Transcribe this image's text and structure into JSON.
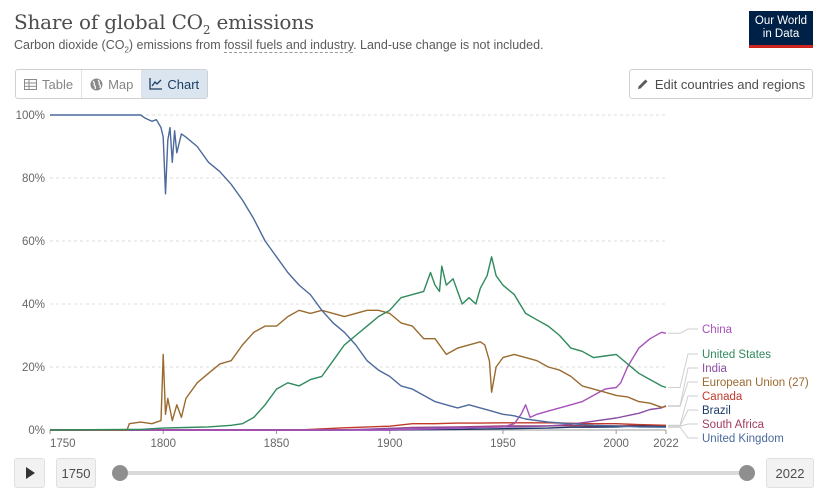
{
  "header": {
    "title": "Share of global CO",
    "title_sub": "2",
    "title_rest": " emissions",
    "subtitle_pre": "Carbon dioxide (CO",
    "subtitle_sub": "2",
    "subtitle_mid": ") emissions from ",
    "subtitle_link": "fossil fuels and industry",
    "subtitle_post": ". Land-use change is not included.",
    "logo_line1": "Our World",
    "logo_line2": "in Data"
  },
  "tabs": [
    {
      "label": "Table",
      "icon": "table-icon"
    },
    {
      "label": "Map",
      "icon": "globe-icon"
    },
    {
      "label": "Chart",
      "icon": "line-chart-icon",
      "active": true
    }
  ],
  "edit_button": {
    "label": "Edit countries and regions",
    "icon": "pencil-icon"
  },
  "timeline": {
    "start_year": "1750",
    "end_year": "2022",
    "play_icon": "play-icon"
  },
  "colors": {
    "United Kingdom": "#4c6a9c",
    "United States": "#2f8a5c",
    "European Union (27)": "#9a6a2f",
    "China": "#a652ba",
    "India": "#8a4da3",
    "Canada": "#c0392b",
    "Brazil": "#1a3a6b",
    "South Africa": "#a33c5c",
    "grid": "#dddddd",
    "text": "#5b5b5b"
  },
  "chart_data": {
    "type": "line",
    "title": "Share of global CO2 emissions",
    "xlim": [
      1750,
      2022
    ],
    "ylim": [
      0,
      100
    ],
    "x_ticks": [
      "1750",
      "1800",
      "1850",
      "1900",
      "1950",
      "2000",
      "2022"
    ],
    "y_ticks": [
      "0%",
      "20%",
      "40%",
      "60%",
      "80%",
      "100%"
    ],
    "series": [
      {
        "name": "United Kingdom",
        "points": [
          [
            1750,
            100
          ],
          [
            1790,
            100
          ],
          [
            1792,
            99
          ],
          [
            1795,
            98
          ],
          [
            1797,
            98.5
          ],
          [
            1799,
            96
          ],
          [
            1800,
            93
          ],
          [
            1801,
            75
          ],
          [
            1802,
            92
          ],
          [
            1803,
            96
          ],
          [
            1804,
            85
          ],
          [
            1805,
            95
          ],
          [
            1806,
            88
          ],
          [
            1808,
            94
          ],
          [
            1810,
            93
          ],
          [
            1815,
            90
          ],
          [
            1820,
            85
          ],
          [
            1825,
            82
          ],
          [
            1830,
            78
          ],
          [
            1835,
            73
          ],
          [
            1840,
            67
          ],
          [
            1845,
            60
          ],
          [
            1850,
            55
          ],
          [
            1855,
            50
          ],
          [
            1860,
            46
          ],
          [
            1865,
            43
          ],
          [
            1870,
            38
          ],
          [
            1875,
            34
          ],
          [
            1880,
            31
          ],
          [
            1885,
            27
          ],
          [
            1890,
            22
          ],
          [
            1895,
            19
          ],
          [
            1900,
            17
          ],
          [
            1905,
            14
          ],
          [
            1910,
            13
          ],
          [
            1915,
            11
          ],
          [
            1920,
            9
          ],
          [
            1925,
            8
          ],
          [
            1930,
            7
          ],
          [
            1935,
            8
          ],
          [
            1940,
            7
          ],
          [
            1945,
            6
          ],
          [
            1950,
            5
          ],
          [
            1955,
            4.5
          ],
          [
            1960,
            3.5
          ],
          [
            1970,
            2.5
          ],
          [
            1980,
            2
          ],
          [
            1990,
            1.5
          ],
          [
            2000,
            1.3
          ],
          [
            2010,
            1
          ],
          [
            2022,
            0.9
          ]
        ]
      },
      {
        "name": "United States",
        "points": [
          [
            1750,
            0
          ],
          [
            1790,
            0.2
          ],
          [
            1800,
            0.6
          ],
          [
            1810,
            0.8
          ],
          [
            1820,
            1
          ],
          [
            1830,
            1.5
          ],
          [
            1835,
            2
          ],
          [
            1840,
            4
          ],
          [
            1845,
            8
          ],
          [
            1850,
            13
          ],
          [
            1855,
            15
          ],
          [
            1860,
            14
          ],
          [
            1865,
            16
          ],
          [
            1870,
            17
          ],
          [
            1875,
            22
          ],
          [
            1880,
            27
          ],
          [
            1885,
            30
          ],
          [
            1890,
            33
          ],
          [
            1895,
            36
          ],
          [
            1900,
            38
          ],
          [
            1905,
            42
          ],
          [
            1910,
            43
          ],
          [
            1915,
            44
          ],
          [
            1918,
            50
          ],
          [
            1920,
            46
          ],
          [
            1922,
            44
          ],
          [
            1923,
            52
          ],
          [
            1925,
            46
          ],
          [
            1928,
            48
          ],
          [
            1930,
            44
          ],
          [
            1932,
            40
          ],
          [
            1935,
            42
          ],
          [
            1938,
            40
          ],
          [
            1940,
            45
          ],
          [
            1943,
            49
          ],
          [
            1945,
            55
          ],
          [
            1947,
            49
          ],
          [
            1950,
            46
          ],
          [
            1955,
            43
          ],
          [
            1960,
            37
          ],
          [
            1965,
            35
          ],
          [
            1970,
            33
          ],
          [
            1975,
            30
          ],
          [
            1980,
            26
          ],
          [
            1985,
            25
          ],
          [
            1990,
            23
          ],
          [
            1995,
            23.5
          ],
          [
            2000,
            24
          ],
          [
            2005,
            21
          ],
          [
            2010,
            18
          ],
          [
            2015,
            16
          ],
          [
            2020,
            14
          ],
          [
            2022,
            13.5
          ]
        ]
      },
      {
        "name": "European Union (27)",
        "points": [
          [
            1750,
            0
          ],
          [
            1784,
            0
          ],
          [
            1785,
            2
          ],
          [
            1790,
            2.5
          ],
          [
            1795,
            2
          ],
          [
            1799,
            3
          ],
          [
            1800,
            24
          ],
          [
            1801,
            5
          ],
          [
            1802,
            10
          ],
          [
            1804,
            3
          ],
          [
            1806,
            8
          ],
          [
            1808,
            4
          ],
          [
            1810,
            10
          ],
          [
            1815,
            15
          ],
          [
            1820,
            18
          ],
          [
            1825,
            21
          ],
          [
            1830,
            22
          ],
          [
            1835,
            27
          ],
          [
            1840,
            31
          ],
          [
            1845,
            33
          ],
          [
            1850,
            33
          ],
          [
            1855,
            36
          ],
          [
            1860,
            38
          ],
          [
            1865,
            37
          ],
          [
            1870,
            38
          ],
          [
            1875,
            37
          ],
          [
            1880,
            36
          ],
          [
            1885,
            37
          ],
          [
            1890,
            38
          ],
          [
            1895,
            38
          ],
          [
            1900,
            37
          ],
          [
            1905,
            34
          ],
          [
            1910,
            33
          ],
          [
            1915,
            29
          ],
          [
            1920,
            29
          ],
          [
            1925,
            24
          ],
          [
            1930,
            26
          ],
          [
            1935,
            27
          ],
          [
            1940,
            28
          ],
          [
            1942,
            27
          ],
          [
            1944,
            22
          ],
          [
            1945,
            12
          ],
          [
            1947,
            20
          ],
          [
            1950,
            23
          ],
          [
            1955,
            24
          ],
          [
            1960,
            23
          ],
          [
            1965,
            22
          ],
          [
            1970,
            20
          ],
          [
            1975,
            19
          ],
          [
            1980,
            17
          ],
          [
            1985,
            14
          ],
          [
            1990,
            13
          ],
          [
            1995,
            12
          ],
          [
            2000,
            11
          ],
          [
            2005,
            10.5
          ],
          [
            2010,
            9
          ],
          [
            2015,
            8.5
          ],
          [
            2020,
            7.2
          ],
          [
            2022,
            7.5
          ]
        ]
      },
      {
        "name": "China",
        "points": [
          [
            1750,
            0
          ],
          [
            1900,
            0
          ],
          [
            1950,
            1
          ],
          [
            1955,
            2
          ],
          [
            1958,
            5
          ],
          [
            1960,
            8
          ],
          [
            1962,
            4
          ],
          [
            1965,
            5
          ],
          [
            1970,
            6
          ],
          [
            1975,
            7
          ],
          [
            1980,
            8
          ],
          [
            1985,
            9
          ],
          [
            1990,
            11
          ],
          [
            1995,
            13
          ],
          [
            2000,
            13.5
          ],
          [
            2002,
            15
          ],
          [
            2005,
            20
          ],
          [
            2010,
            26
          ],
          [
            2015,
            29
          ],
          [
            2020,
            31
          ],
          [
            2022,
            30.7
          ]
        ]
      },
      {
        "name": "India",
        "points": [
          [
            1750,
            0
          ],
          [
            1880,
            0
          ],
          [
            1900,
            0.5
          ],
          [
            1920,
            0.8
          ],
          [
            1950,
            1
          ],
          [
            1960,
            1.1
          ],
          [
            1970,
            1.3
          ],
          [
            1980,
            1.8
          ],
          [
            1990,
            2.8
          ],
          [
            2000,
            3.8
          ],
          [
            2010,
            5.3
          ],
          [
            2015,
            6.5
          ],
          [
            2020,
            7
          ],
          [
            2022,
            7.7
          ]
        ]
      },
      {
        "name": "Canada",
        "points": [
          [
            1750,
            0
          ],
          [
            1860,
            0
          ],
          [
            1880,
            0.7
          ],
          [
            1900,
            1.2
          ],
          [
            1910,
            2
          ],
          [
            1920,
            2
          ],
          [
            1930,
            2.2
          ],
          [
            1940,
            2.2
          ],
          [
            1950,
            2.3
          ],
          [
            1970,
            2.3
          ],
          [
            1990,
            2
          ],
          [
            2000,
            2
          ],
          [
            2010,
            1.7
          ],
          [
            2022,
            1.5
          ]
        ]
      },
      {
        "name": "Brazil",
        "points": [
          [
            1750,
            0
          ],
          [
            1900,
            0
          ],
          [
            1930,
            0.2
          ],
          [
            1950,
            0.4
          ],
          [
            1970,
            0.6
          ],
          [
            1980,
            0.9
          ],
          [
            1990,
            0.9
          ],
          [
            2000,
            1
          ],
          [
            2010,
            1.3
          ],
          [
            2015,
            1.4
          ],
          [
            2022,
            1.2
          ]
        ]
      },
      {
        "name": "South Africa",
        "points": [
          [
            1750,
            0
          ],
          [
            1870,
            0
          ],
          [
            1890,
            0.2
          ],
          [
            1910,
            0.8
          ],
          [
            1930,
            1
          ],
          [
            1950,
            1.3
          ],
          [
            1970,
            1.3
          ],
          [
            1980,
            1.4
          ],
          [
            1990,
            1.3
          ],
          [
            2000,
            1.3
          ],
          [
            2010,
            1.4
          ],
          [
            2022,
            1.2
          ]
        ]
      }
    ],
    "legend": [
      {
        "name": "China",
        "end_value": 30.7
      },
      {
        "name": "United States",
        "end_value": 13.5
      },
      {
        "name": "India",
        "end_value": 7.7
      },
      {
        "name": "European Union (27)",
        "end_value": 7.5
      },
      {
        "name": "Canada",
        "end_value": 1.5
      },
      {
        "name": "Brazil",
        "end_value": 1.2
      },
      {
        "name": "South Africa",
        "end_value": 1.2
      },
      {
        "name": "United Kingdom",
        "end_value": 0.9
      }
    ]
  }
}
